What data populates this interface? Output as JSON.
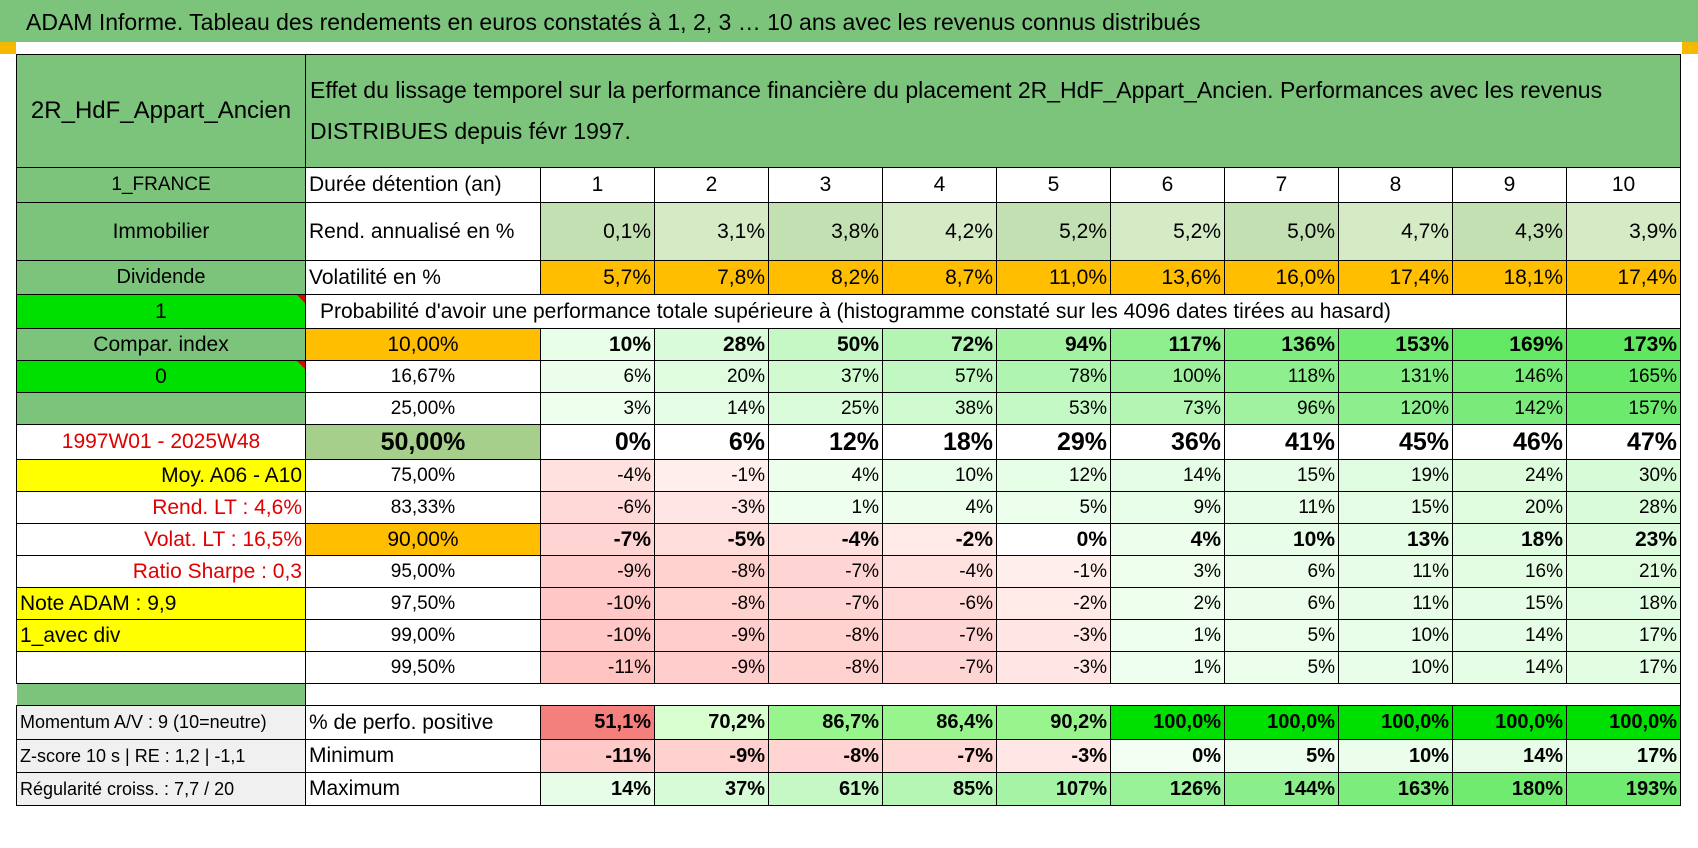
{
  "title": "ADAM Informe. Tableau des rendements en euros constatés à 1, 2, 3 … 10 ans avec les revenus connus distribués",
  "header": {
    "fund": "2R_HdF_Appart_Ancien",
    "desc": "Effet du lissage temporel sur la performance financière du placement 2R_HdF_Appart_Ancien. Performances avec les revenus DISTRIBUES depuis févr 1997."
  },
  "colors": {
    "green_header": "#7cc47c",
    "orange": "#ffbf00",
    "yellow": "#ffff00",
    "bright_green": "#00e000",
    "red_text": "#e00000"
  },
  "side": {
    "country": "1_FRANCE",
    "asset": "Immobilier",
    "kind": "Dividende",
    "flag1": "1",
    "compar": "Compar. index",
    "flag0": "0",
    "blank": "",
    "period": "1997W01 - 2025W48",
    "moy": "Moy. A06 - A10",
    "rend_lt": "Rend. LT :    4,6%",
    "volat_lt": "Volat. LT :    16,5%",
    "sharpe": "Ratio Sharpe :     0,3",
    "note": "Note ADAM : 9,9",
    "div": "1_avec div",
    "momentum": "Momentum A/V : 9 (10=neutre)",
    "zscore": "Z-score 10 s | RE : 1,2 | -1,1",
    "regularite": "Régularité croiss. : 7,7 / 20"
  },
  "labels": {
    "duree": "Durée détention (an)",
    "rend": "Rend. annualisé en %",
    "vol": "Volatilité en %",
    "proba": "Probabilité d'avoir une performance totale supérieure à (histogramme constaté sur les 4096 dates tirées au hasard)",
    "positive": "% de perfo. positive",
    "minimum": "Minimum",
    "maximum": "Maximum"
  },
  "years": [
    "1",
    "2",
    "3",
    "4",
    "5",
    "6",
    "7",
    "8",
    "9",
    "10"
  ],
  "rend": [
    "0,1%",
    "3,1%",
    "3,8%",
    "4,2%",
    "5,2%",
    "5,2%",
    "5,0%",
    "4,7%",
    "4,3%",
    "3,9%"
  ],
  "vol": [
    "5,7%",
    "7,8%",
    "8,2%",
    "8,7%",
    "11,0%",
    "13,6%",
    "16,0%",
    "17,4%",
    "18,1%",
    "17,4%"
  ],
  "rows": [
    {
      "p": "10,00%",
      "v": [
        "10%",
        "28%",
        "50%",
        "72%",
        "94%",
        "117%",
        "136%",
        "153%",
        "169%",
        "173%"
      ]
    },
    {
      "p": "16,67%",
      "v": [
        "6%",
        "20%",
        "37%",
        "57%",
        "78%",
        "100%",
        "118%",
        "131%",
        "146%",
        "165%"
      ]
    },
    {
      "p": "25,00%",
      "v": [
        "3%",
        "14%",
        "25%",
        "38%",
        "53%",
        "73%",
        "96%",
        "120%",
        "142%",
        "157%"
      ]
    },
    {
      "p": "50,00%",
      "v": [
        "0%",
        "6%",
        "12%",
        "18%",
        "29%",
        "36%",
        "41%",
        "45%",
        "46%",
        "47%"
      ]
    },
    {
      "p": "75,00%",
      "v": [
        "-4%",
        "-1%",
        "4%",
        "10%",
        "12%",
        "14%",
        "15%",
        "19%",
        "24%",
        "30%"
      ]
    },
    {
      "p": "83,33%",
      "v": [
        "-6%",
        "-3%",
        "1%",
        "4%",
        "5%",
        "9%",
        "11%",
        "15%",
        "20%",
        "28%"
      ]
    },
    {
      "p": "90,00%",
      "v": [
        "-7%",
        "-5%",
        "-4%",
        "-2%",
        "0%",
        "4%",
        "10%",
        "13%",
        "18%",
        "23%"
      ]
    },
    {
      "p": "95,00%",
      "v": [
        "-9%",
        "-8%",
        "-7%",
        "-4%",
        "-1%",
        "3%",
        "6%",
        "11%",
        "16%",
        "21%"
      ]
    },
    {
      "p": "97,50%",
      "v": [
        "-10%",
        "-8%",
        "-7%",
        "-6%",
        "-2%",
        "2%",
        "6%",
        "11%",
        "15%",
        "18%"
      ]
    },
    {
      "p": "99,00%",
      "v": [
        "-10%",
        "-9%",
        "-8%",
        "-7%",
        "-3%",
        "1%",
        "5%",
        "10%",
        "14%",
        "17%"
      ]
    },
    {
      "p": "99,50%",
      "v": [
        "-11%",
        "-9%",
        "-8%",
        "-7%",
        "-3%",
        "1%",
        "5%",
        "10%",
        "14%",
        "17%"
      ]
    }
  ],
  "positive": [
    "51,1%",
    "70,2%",
    "86,7%",
    "86,4%",
    "90,2%",
    "100,0%",
    "100,0%",
    "100,0%",
    "100,0%",
    "100,0%"
  ],
  "minimum": [
    "-11%",
    "-9%",
    "-8%",
    "-7%",
    "-3%",
    "0%",
    "5%",
    "10%",
    "14%",
    "17%"
  ],
  "maximum": [
    "14%",
    "37%",
    "61%",
    "85%",
    "107%",
    "126%",
    "144%",
    "163%",
    "180%",
    "193%"
  ]
}
